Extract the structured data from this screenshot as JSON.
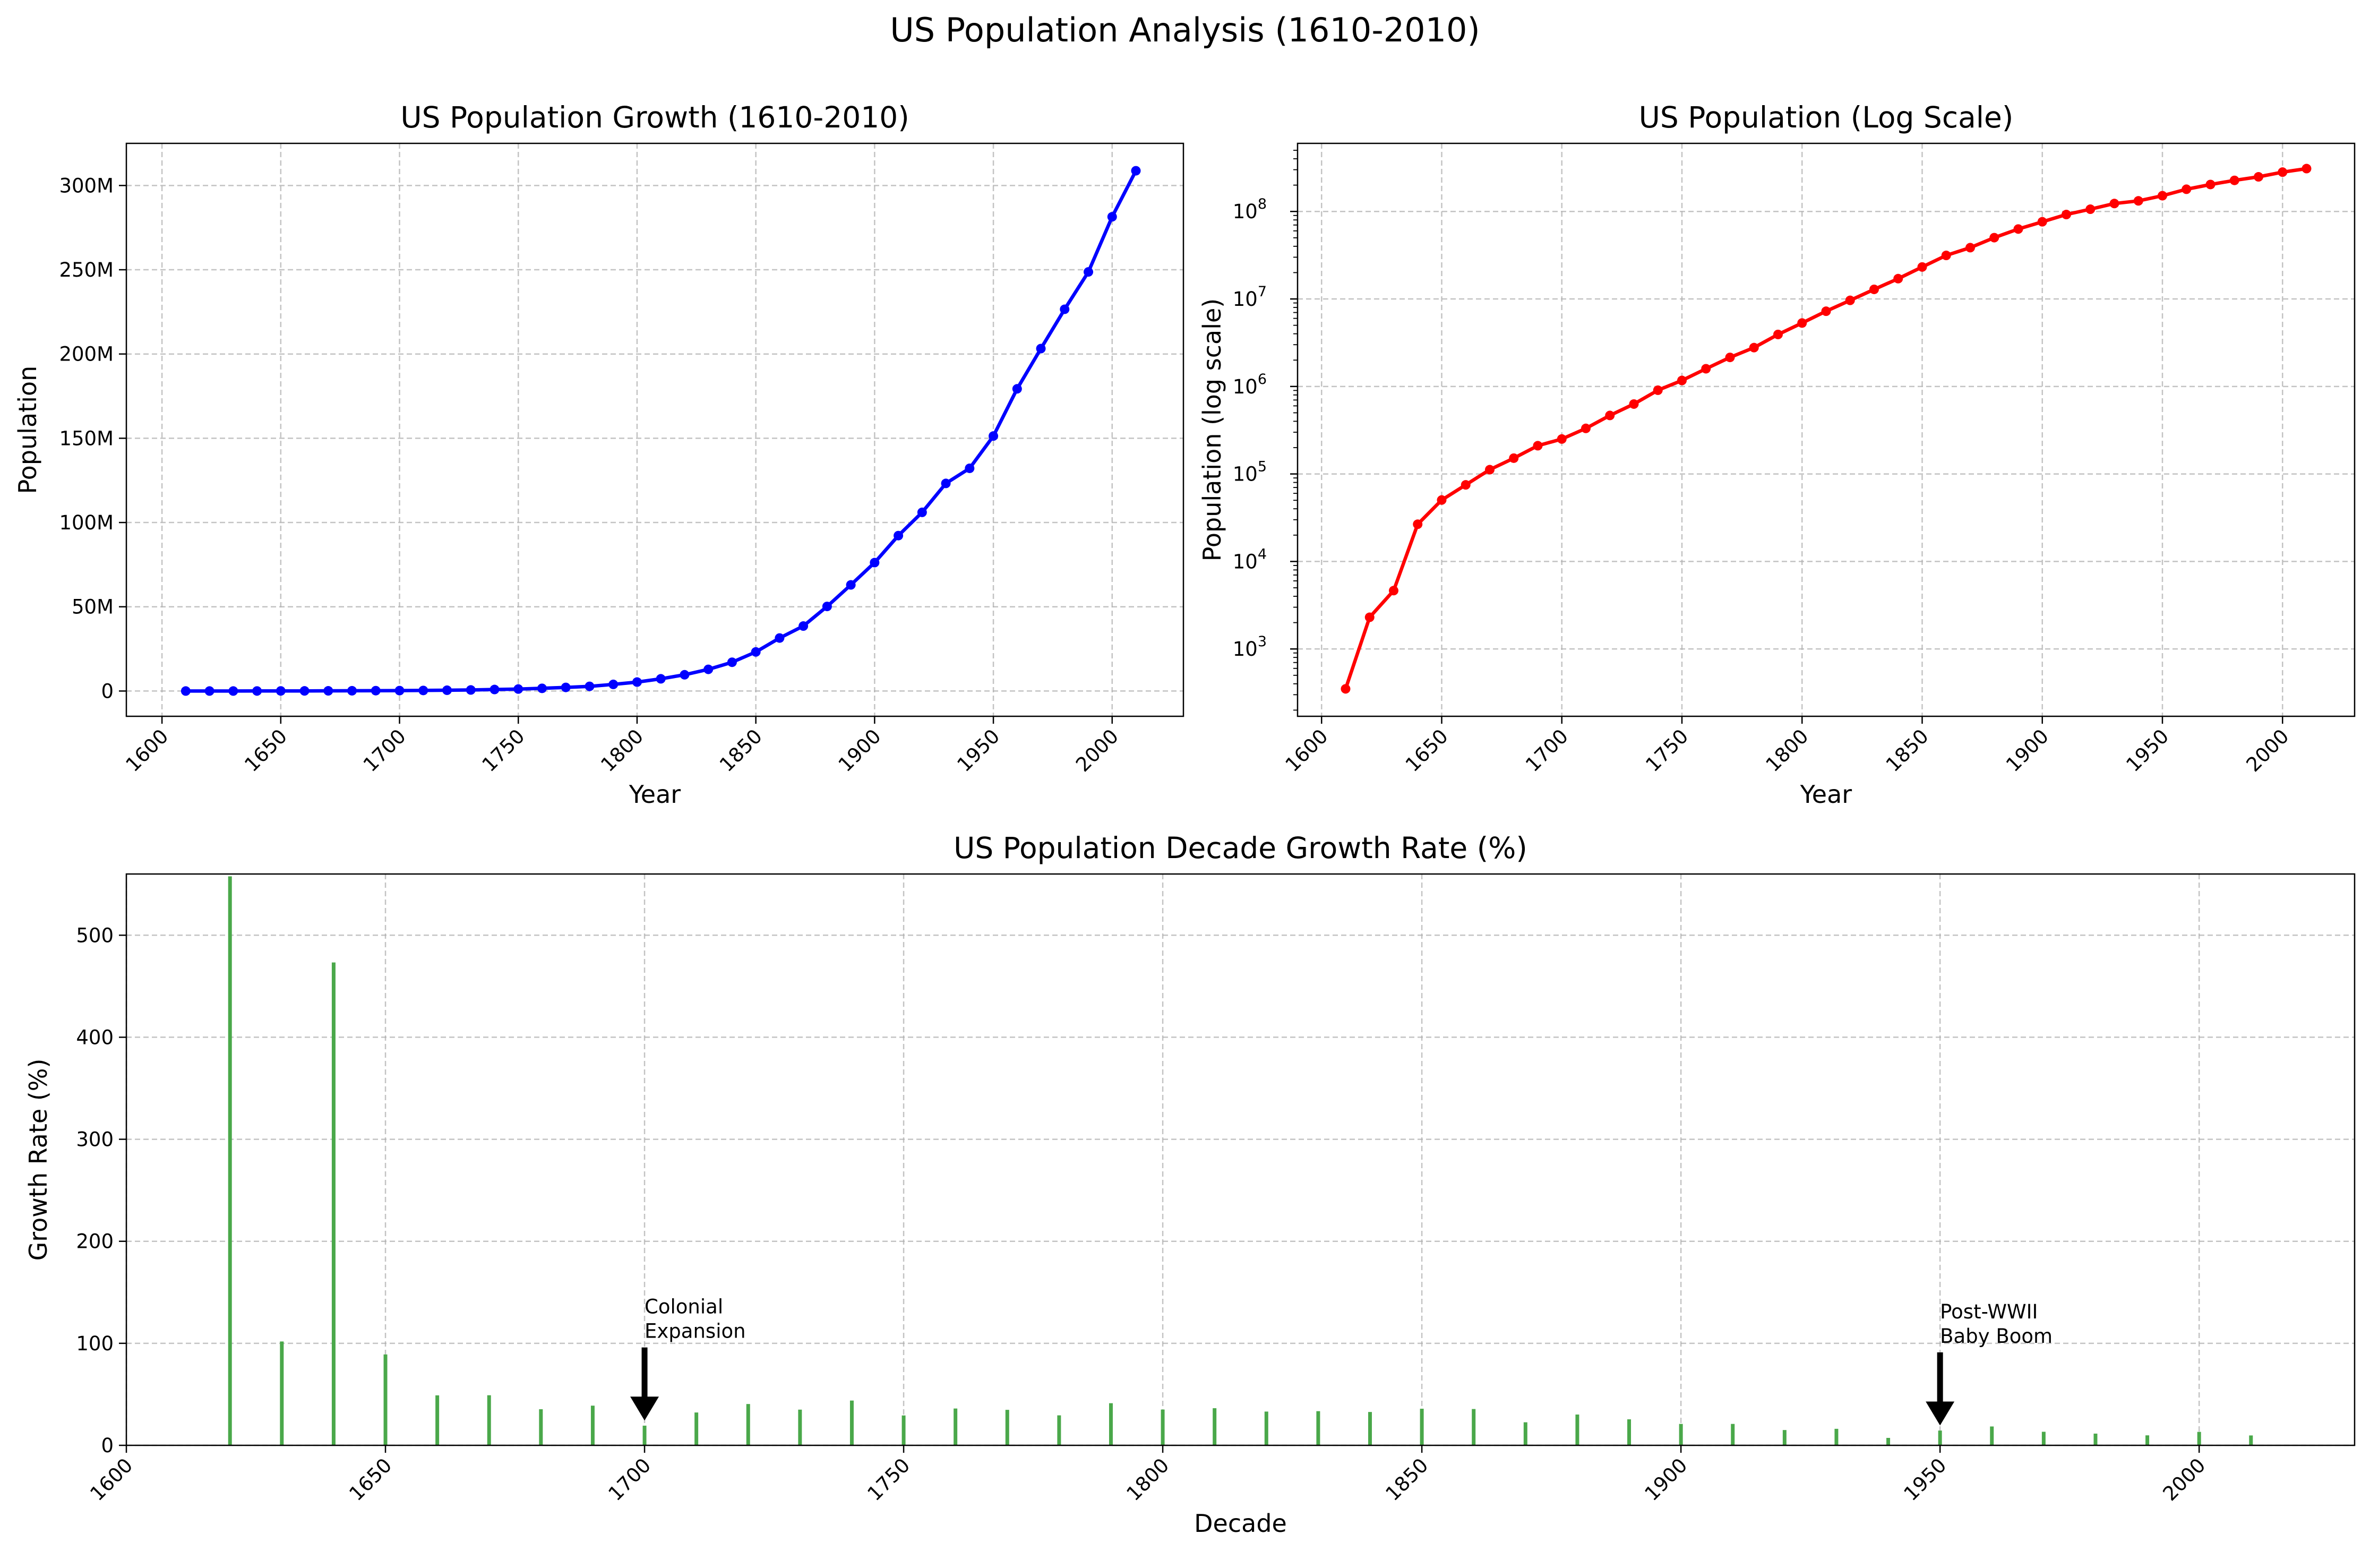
{
  "figure": {
    "suptitle": "US Population Analysis (1610-2010)"
  },
  "chart_data": [
    {
      "type": "line",
      "title": "US Population Growth (1610-2010)",
      "xlabel": "Year",
      "ylabel": "Population",
      "xlim": [
        1585,
        2030
      ],
      "ylim": [
        -15000000,
        325000000
      ],
      "xticks": [
        1600,
        1650,
        1700,
        1750,
        1800,
        1850,
        1900,
        1950,
        2000
      ],
      "yticks": [
        {
          "value": 0,
          "label": "0"
        },
        {
          "value": 50000000,
          "label": "50M"
        },
        {
          "value": 100000000,
          "label": "100M"
        },
        {
          "value": 150000000,
          "label": "150M"
        },
        {
          "value": 200000000,
          "label": "200M"
        },
        {
          "value": 250000000,
          "label": "250M"
        },
        {
          "value": 300000000,
          "label": "300M"
        }
      ],
      "grid": true,
      "series": [
        {
          "color": "#0000ff",
          "x": [
            1610,
            1620,
            1630,
            1640,
            1650,
            1660,
            1670,
            1680,
            1690,
            1700,
            1710,
            1720,
            1730,
            1740,
            1750,
            1760,
            1770,
            1780,
            1790,
            1800,
            1810,
            1820,
            1830,
            1840,
            1850,
            1860,
            1870,
            1880,
            1890,
            1900,
            1910,
            1920,
            1930,
            1940,
            1950,
            1960,
            1970,
            1980,
            1990,
            2000,
            2010
          ],
          "y": [
            350,
            2302,
            4646,
            26634,
            50368,
            75058,
            111935,
            151507,
            210372,
            250888,
            331711,
            466185,
            629445,
            905563,
            1170760,
            1593625,
            2148076,
            2780369,
            3929214,
            5308483,
            7239881,
            9638453,
            12866020,
            17069453,
            23191876,
            31443321,
            38558371,
            50189209,
            62979766,
            76212168,
            92228496,
            106021537,
            123202624,
            132164569,
            151325798,
            179323175,
            203211926,
            226545805,
            248709873,
            281421906,
            308745538
          ]
        }
      ]
    },
    {
      "type": "line",
      "title": "US Population (Log Scale)",
      "xlabel": "Year",
      "ylabel": "Population (log scale)",
      "yscale": "log",
      "xlim": [
        1590,
        2030
      ],
      "ylim": [
        170,
        600000000
      ],
      "xticks": [
        1600,
        1650,
        1700,
        1750,
        1800,
        1850,
        1900,
        1950,
        2000
      ],
      "yticks": [
        {
          "value": 1000,
          "base": "10",
          "exp": "3"
        },
        {
          "value": 10000,
          "base": "10",
          "exp": "4"
        },
        {
          "value": 100000,
          "base": "10",
          "exp": "5"
        },
        {
          "value": 1000000,
          "base": "10",
          "exp": "6"
        },
        {
          "value": 10000000,
          "base": "10",
          "exp": "7"
        },
        {
          "value": 100000000,
          "base": "10",
          "exp": "8"
        }
      ],
      "grid": true,
      "series": [
        {
          "color": "#ff0000",
          "x": [
            1610,
            1620,
            1630,
            1640,
            1650,
            1660,
            1670,
            1680,
            1690,
            1700,
            1710,
            1720,
            1730,
            1740,
            1750,
            1760,
            1770,
            1780,
            1790,
            1800,
            1810,
            1820,
            1830,
            1840,
            1850,
            1860,
            1870,
            1880,
            1890,
            1900,
            1910,
            1920,
            1930,
            1940,
            1950,
            1960,
            1970,
            1980,
            1990,
            2000,
            2010
          ],
          "y": [
            350,
            2302,
            4646,
            26634,
            50368,
            75058,
            111935,
            151507,
            210372,
            250888,
            331711,
            466185,
            629445,
            905563,
            1170760,
            1593625,
            2148076,
            2780369,
            3929214,
            5308483,
            7239881,
            9638453,
            12866020,
            17069453,
            23191876,
            31443321,
            38558371,
            50189209,
            62979766,
            76212168,
            92228496,
            106021537,
            123202624,
            132164569,
            151325798,
            179323175,
            203211926,
            226545805,
            248709873,
            281421906,
            308745538
          ]
        }
      ]
    },
    {
      "type": "bar",
      "title": "US Population Decade Growth Rate (%)",
      "xlabel": "Decade",
      "ylabel": "Growth Rate (%)",
      "xlim": [
        1600,
        2030
      ],
      "ylim": [
        0,
        560
      ],
      "xticks": [
        1600,
        1650,
        1700,
        1750,
        1800,
        1850,
        1900,
        1950,
        2000
      ],
      "yticks": [
        0,
        100,
        200,
        300,
        400,
        500
      ],
      "grid": true,
      "series": [
        {
          "color": "#4aa84a",
          "x": [
            1620,
            1630,
            1640,
            1650,
            1660,
            1670,
            1680,
            1690,
            1700,
            1710,
            1720,
            1730,
            1740,
            1750,
            1760,
            1770,
            1780,
            1790,
            1800,
            1810,
            1820,
            1830,
            1840,
            1850,
            1860,
            1870,
            1880,
            1890,
            1900,
            1910,
            1920,
            1930,
            1940,
            1950,
            1960,
            1970,
            1980,
            1990,
            2000,
            2010
          ],
          "values": [
            557.7,
            101.8,
            473.3,
            89.1,
            49.0,
            49.1,
            35.4,
            38.9,
            19.3,
            32.2,
            40.5,
            35.0,
            43.9,
            29.3,
            36.1,
            34.8,
            29.4,
            41.3,
            35.1,
            36.4,
            33.1,
            33.5,
            32.7,
            35.9,
            35.6,
            22.6,
            30.2,
            25.5,
            21.0,
            21.0,
            15.0,
            16.2,
            7.3,
            14.5,
            18.5,
            13.3,
            11.5,
            9.8,
            13.2,
            9.7
          ]
        }
      ],
      "annotations": [
        {
          "line1": "Colonial",
          "line2": "Expansion",
          "x": 1700,
          "y": 19.3
        },
        {
          "line1": "Post-WWII",
          "line2": "Baby Boom",
          "x": 1950,
          "y": 14.5
        }
      ]
    }
  ]
}
